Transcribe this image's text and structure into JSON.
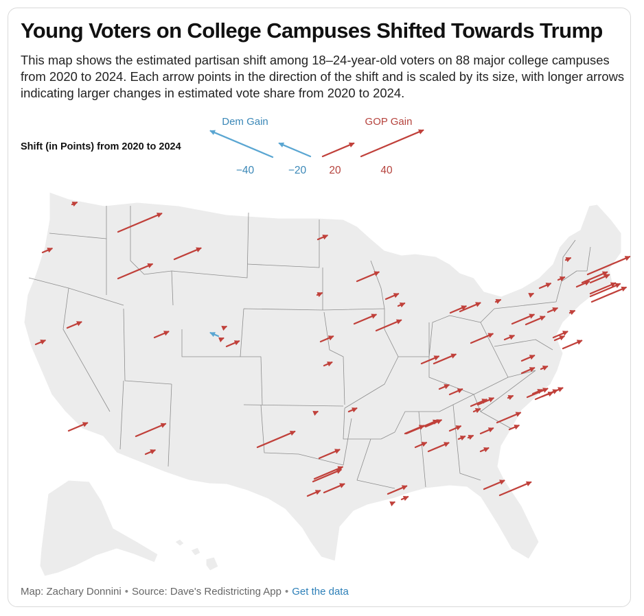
{
  "title": "Young Voters on College Campuses Shifted Towards Trump",
  "subtitle": "This map shows the estimated partisan shift among 18–24-year-old voters on 88 major college campuses from 2020 to 2024. Each arrow points in the direction of the shift and is scaled by its size, with longer arrows indicating larger changes in estimated vote share from 2020 to 2024.",
  "legend": {
    "title": "Shift (in Points) from 2020 to 2024",
    "dem_label": "Dem Gain",
    "gop_label": "GOP Gain",
    "items": [
      {
        "value": -40,
        "label": "−40"
      },
      {
        "value": -20,
        "label": "−20"
      },
      {
        "value": 20,
        "label": "20"
      },
      {
        "value": 40,
        "label": "40"
      }
    ]
  },
  "footer": {
    "credit": "Map: Zachary Donnini",
    "source": "Source: Dave's Redistricting App",
    "link_label": "Get the data",
    "separator": "•"
  },
  "colors": {
    "dem": "#5aa6d2",
    "gop": "#c0403a",
    "land": "#ececec",
    "border": "#8c8c8c"
  },
  "map_data": {
    "shift_points": [
      6,
      28,
      6,
      22,
      9,
      9,
      12,
      19,
      6,
      17,
      3,
      8,
      1,
      2,
      6,
      14,
      14,
      3,
      8,
      5,
      16,
      4,
      8,
      10,
      13,
      24,
      2,
      13,
      18,
      8,
      13,
      5,
      12,
      4,
      12,
      7,
      13,
      7,
      11,
      14,
      -5,
      14,
      6,
      2,
      7,
      12,
      3,
      3,
      6,
      4,
      8,
      8,
      4,
      9,
      12,
      3,
      13,
      6,
      6,
      8,
      10,
      10,
      20,
      10,
      8,
      15,
      6,
      5,
      13,
      20,
      14,
      13,
      3,
      4,
      3,
      4,
      14,
      3,
      6,
      27,
      16,
      8,
      16,
      19,
      22,
      12,
      18,
      2
    ]
  }
}
